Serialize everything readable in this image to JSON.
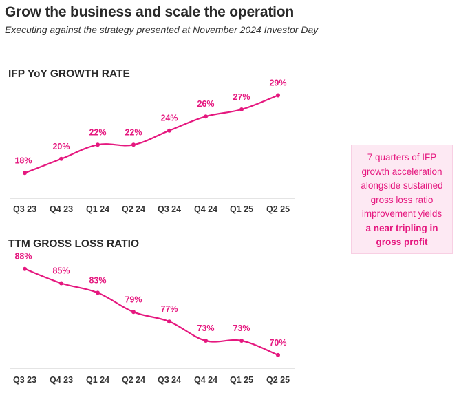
{
  "page": {
    "title": "Grow the business and scale the operation",
    "subtitle": "Executing against the strategy presented at November 2024 Investor Day"
  },
  "callout": {
    "text": "7 quarters of IFP growth acceleration alongside sustained gross loss ratio improvement yields",
    "emphasis": "a near tripling in gross profit"
  },
  "colors": {
    "accent": "#e5187f",
    "callout_bg": "#fde9f3",
    "axis": "#c8c8c8"
  },
  "chart_data": [
    {
      "type": "line",
      "title": "IFP YoY GROWTH RATE",
      "categories": [
        "Q3 23",
        "Q4 23",
        "Q1 24",
        "Q2 24",
        "Q3 24",
        "Q4 24",
        "Q1 25",
        "Q2 25"
      ],
      "values": [
        18,
        20,
        22,
        22,
        24,
        26,
        27,
        29
      ],
      "labels": [
        "18%",
        "20%",
        "22%",
        "22%",
        "24%",
        "26%",
        "27%",
        "29%"
      ],
      "ylim": [
        15.2,
        30.8
      ],
      "xlabel": "",
      "ylabel": ""
    },
    {
      "type": "line",
      "title": "TTM GROSS LOSS RATIO",
      "categories": [
        "Q3 23",
        "Q4 23",
        "Q1 24",
        "Q2 24",
        "Q3 24",
        "Q4 24",
        "Q1 25",
        "Q2 25"
      ],
      "values": [
        88,
        85,
        83,
        79,
        77,
        73,
        73,
        70
      ],
      "labels": [
        "88%",
        "85%",
        "83%",
        "79%",
        "77%",
        "73%",
        "73%",
        "70%"
      ],
      "ylim": [
        68.4,
        89.1
      ],
      "xlabel": "",
      "ylabel": ""
    }
  ]
}
